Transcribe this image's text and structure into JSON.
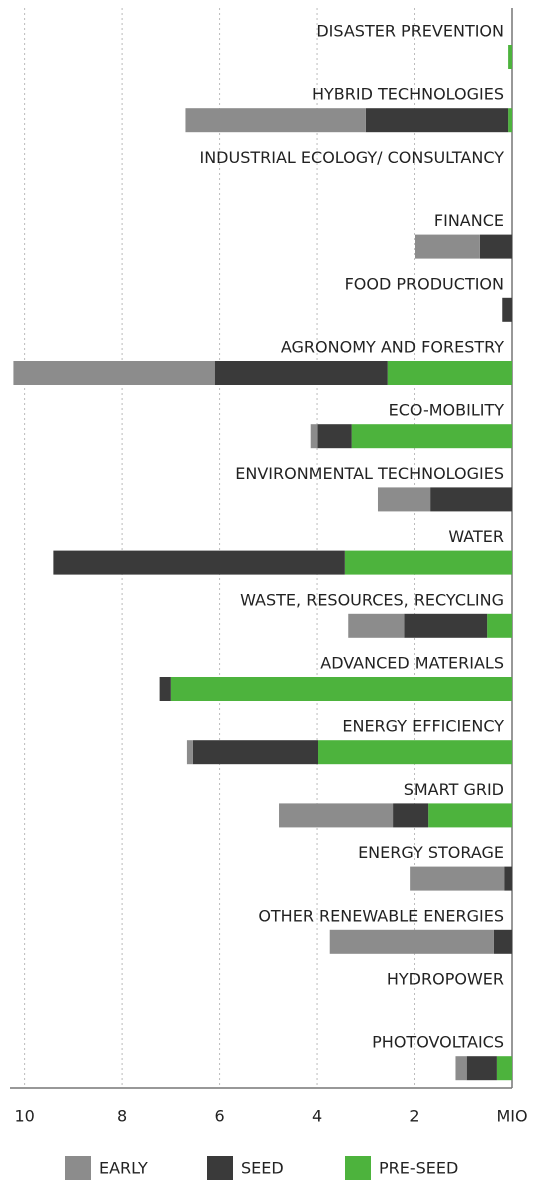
{
  "chart_data": {
    "type": "bar",
    "orientation": "horizontal",
    "stacked": true,
    "x_reversed": true,
    "categories": [
      "DISASTER PREVENTION",
      "HYBRID TECHNOLOGIES",
      "INDUSTRIAL ECOLOGY/ CONSULTANCY",
      "FINANCE",
      "FOOD PRODUCTION",
      "AGRONOMY AND FORESTRY",
      "ECO-MOBILITY",
      "ENVIRONMENTAL TECHNOLOGIES",
      "WATER",
      "WASTE, RESOURCES, RECYCLING",
      "ADVANCED MATERIALS",
      "ENERGY EFFICIENCY",
      "SMART GRID",
      "ENERGY STORAGE",
      "OTHER RENEWABLE ENERGIES",
      "HYDROPOWER",
      "PHOTOVOLTAICS"
    ],
    "series": [
      {
        "name": "PRE-SEED",
        "color": "#4db33d",
        "values": [
          0.08,
          0.08,
          0,
          0,
          0,
          2.55,
          3.29,
          0,
          3.43,
          0.51,
          7.0,
          3.98,
          1.72,
          0,
          0,
          0,
          0.31
        ]
      },
      {
        "name": "SEED",
        "color": "#3a3a3a",
        "values": [
          0,
          2.92,
          0,
          0.66,
          0.2,
          3.55,
          0.7,
          1.68,
          5.98,
          1.7,
          0.23,
          2.57,
          0.72,
          0.16,
          0.37,
          0,
          0.62
        ]
      },
      {
        "name": "EARLY",
        "color": "#8c8c8c",
        "values": [
          0,
          3.7,
          0,
          1.33,
          0,
          4.13,
          0.14,
          1.07,
          0,
          1.15,
          0,
          0.12,
          2.34,
          1.93,
          3.37,
          0,
          0.23
        ]
      }
    ],
    "legend_order": [
      2,
      1,
      0
    ],
    "xlim": [
      0,
      10.3
    ],
    "xticks": [
      {
        "value": 0,
        "label": "MIO"
      },
      2,
      4,
      6,
      8,
      10
    ],
    "grid": true
  }
}
